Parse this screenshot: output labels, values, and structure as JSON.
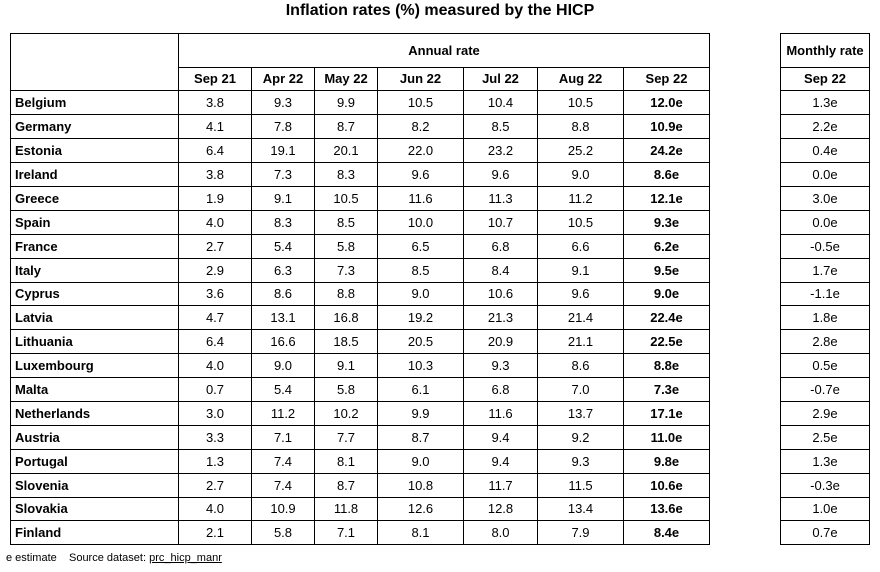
{
  "title": "Inflation rates (%) measured by the HICP",
  "annual_header": "Annual rate",
  "monthly_header": "Monthly rate",
  "columns": [
    "Sep 21",
    "Apr 22",
    "May 22",
    "Jun 22",
    "Jul 22",
    "Aug 22",
    "Sep 22"
  ],
  "monthly_column": "Sep 22",
  "rows": [
    {
      "country": "Belgium",
      "values": [
        "3.8",
        "9.3",
        "9.9",
        "10.5",
        "10.4",
        "10.5",
        "12.0e"
      ],
      "monthly": "1.3e"
    },
    {
      "country": "Germany",
      "values": [
        "4.1",
        "7.8",
        "8.7",
        "8.2",
        "8.5",
        "8.8",
        "10.9e"
      ],
      "monthly": "2.2e"
    },
    {
      "country": "Estonia",
      "values": [
        "6.4",
        "19.1",
        "20.1",
        "22.0",
        "23.2",
        "25.2",
        "24.2e"
      ],
      "monthly": "0.4e"
    },
    {
      "country": "Ireland",
      "values": [
        "3.8",
        "7.3",
        "8.3",
        "9.6",
        "9.6",
        "9.0",
        "8.6e"
      ],
      "monthly": "0.0e"
    },
    {
      "country": "Greece",
      "values": [
        "1.9",
        "9.1",
        "10.5",
        "11.6",
        "11.3",
        "11.2",
        "12.1e"
      ],
      "monthly": "3.0e"
    },
    {
      "country": "Spain",
      "values": [
        "4.0",
        "8.3",
        "8.5",
        "10.0",
        "10.7",
        "10.5",
        "9.3e"
      ],
      "monthly": "0.0e"
    },
    {
      "country": "France",
      "values": [
        "2.7",
        "5.4",
        "5.8",
        "6.5",
        "6.8",
        "6.6",
        "6.2e"
      ],
      "monthly": "-0.5e"
    },
    {
      "country": "Italy",
      "values": [
        "2.9",
        "6.3",
        "7.3",
        "8.5",
        "8.4",
        "9.1",
        "9.5e"
      ],
      "monthly": "1.7e"
    },
    {
      "country": "Cyprus",
      "values": [
        "3.6",
        "8.6",
        "8.8",
        "9.0",
        "10.6",
        "9.6",
        "9.0e"
      ],
      "monthly": "-1.1e"
    },
    {
      "country": "Latvia",
      "values": [
        "4.7",
        "13.1",
        "16.8",
        "19.2",
        "21.3",
        "21.4",
        "22.4e"
      ],
      "monthly": "1.8e"
    },
    {
      "country": "Lithuania",
      "values": [
        "6.4",
        "16.6",
        "18.5",
        "20.5",
        "20.9",
        "21.1",
        "22.5e"
      ],
      "monthly": "2.8e"
    },
    {
      "country": "Luxembourg",
      "values": [
        "4.0",
        "9.0",
        "9.1",
        "10.3",
        "9.3",
        "8.6",
        "8.8e"
      ],
      "monthly": "0.5e"
    },
    {
      "country": "Malta",
      "values": [
        "0.7",
        "5.4",
        "5.8",
        "6.1",
        "6.8",
        "7.0",
        "7.3e"
      ],
      "monthly": "-0.7e"
    },
    {
      "country": "Netherlands",
      "values": [
        "3.0",
        "11.2",
        "10.2",
        "9.9",
        "11.6",
        "13.7",
        "17.1e"
      ],
      "monthly": "2.9e"
    },
    {
      "country": "Austria",
      "values": [
        "3.3",
        "7.1",
        "7.7",
        "8.7",
        "9.4",
        "9.2",
        "11.0e"
      ],
      "monthly": "2.5e"
    },
    {
      "country": "Portugal",
      "values": [
        "1.3",
        "7.4",
        "8.1",
        "9.0",
        "9.4",
        "9.3",
        "9.8e"
      ],
      "monthly": "1.3e"
    },
    {
      "country": "Slovenia",
      "values": [
        "2.7",
        "7.4",
        "8.7",
        "10.8",
        "11.7",
        "11.5",
        "10.6e"
      ],
      "monthly": "-0.3e"
    },
    {
      "country": "Slovakia",
      "values": [
        "4.0",
        "10.9",
        "11.8",
        "12.6",
        "12.8",
        "13.4",
        "13.6e"
      ],
      "monthly": "1.0e"
    },
    {
      "country": "Finland",
      "values": [
        "2.1",
        "5.8",
        "7.1",
        "8.1",
        "8.0",
        "7.9",
        "8.4e"
      ],
      "monthly": "0.7e"
    }
  ],
  "footer": {
    "note": "e estimate",
    "source_label": "Source dataset:",
    "source_code": "prc_hicp_manr"
  }
}
